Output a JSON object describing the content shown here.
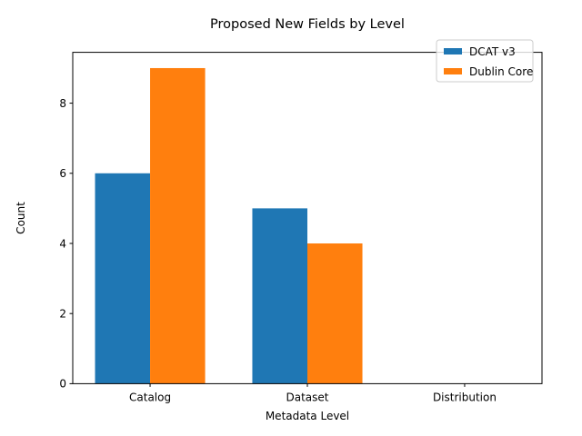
{
  "chart_data": {
    "type": "bar",
    "title": "Proposed New Fields by Level",
    "xlabel": "Metadata Level",
    "ylabel": "Count",
    "categories": [
      "Catalog",
      "Dataset",
      "Distribution"
    ],
    "series": [
      {
        "name": "DCAT v3",
        "values": [
          6,
          5,
          0
        ],
        "color": "#1f77b4"
      },
      {
        "name": "Dublin Core",
        "values": [
          9,
          4,
          0
        ],
        "color": "#ff7f0e"
      }
    ],
    "ylim": [
      0,
      9.45
    ],
    "yticks": [
      0,
      2,
      4,
      6,
      8
    ],
    "grid": false,
    "legend_position": "top-right"
  }
}
